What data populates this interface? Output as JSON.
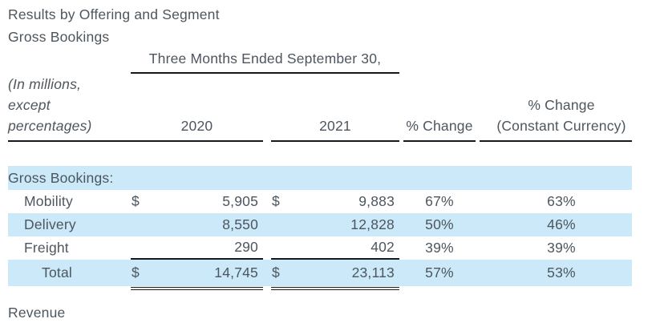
{
  "colors": {
    "row_highlight": "#cbe9f9",
    "text": "#4d565e",
    "rule": "#15191d"
  },
  "header": {
    "title": "Results by Offering and Segment",
    "subtitle": "Gross Bookings"
  },
  "table": {
    "period_header": "Three Months Ended September 30,",
    "units_note": {
      "line1": "(In millions,",
      "line2": "except",
      "line3": "percentages)"
    },
    "columns": {
      "y2020": "2020",
      "y2021": "2021",
      "pct_change": "% Change",
      "pct_change_cc_line1": "% Change",
      "pct_change_cc_line2": "(Constant Currency)"
    },
    "section_label": "Gross Bookings:",
    "rows": [
      {
        "label": "Mobility",
        "cur_2020": "$",
        "v2020": "5,905",
        "cur_2021": "$",
        "v2021": "9,883",
        "pct": "67%",
        "pct_cc": "63%"
      },
      {
        "label": "Delivery",
        "cur_2020": "",
        "v2020": "8,550",
        "cur_2021": "",
        "v2021": "12,828",
        "pct": "50%",
        "pct_cc": "46%"
      },
      {
        "label": "Freight",
        "cur_2020": "",
        "v2020": "290",
        "cur_2021": "",
        "v2021": "402",
        "pct": "39%",
        "pct_cc": "39%"
      }
    ],
    "total": {
      "label": "Total",
      "cur_2020": "$",
      "v2020": "14,745",
      "cur_2021": "$",
      "v2021": "23,113",
      "pct": "57%",
      "pct_cc": "53%"
    }
  },
  "footer": {
    "next_section": "Revenue"
  }
}
